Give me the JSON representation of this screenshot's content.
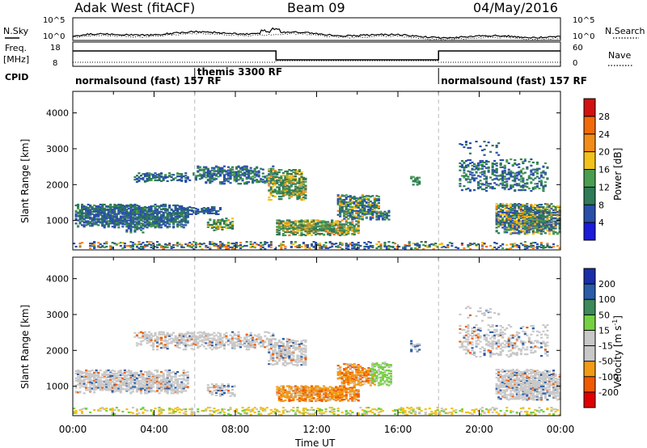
{
  "header": {
    "station": "Adak West (fitACF)",
    "beam": "Beam 09",
    "date": "04/May/2016"
  },
  "noise_panel": {
    "left_label": "N.Sky",
    "right_label": "N.Search",
    "left_ticks": [
      "10^5",
      "10^0"
    ],
    "right_ticks": [
      "10^5",
      "10^0"
    ]
  },
  "freq_panel": {
    "left_label_1": "Freq.",
    "left_label_2": "[MHz]",
    "right_label": "Nave",
    "left_ticks": [
      "18",
      "8"
    ],
    "right_ticks": [
      "60",
      "0"
    ]
  },
  "cpid_panel": {
    "label": "CPID",
    "segments": [
      {
        "start_h": 0,
        "end_h": 6,
        "text": "normalsound (fast) 157 RF"
      },
      {
        "start_h": 6,
        "end_h": 18,
        "text": "themis 3300 RF"
      },
      {
        "start_h": 18,
        "end_h": 24,
        "text": "normalsound (fast) 157 RF"
      }
    ]
  },
  "colors": {
    "power": [
      "#1c1cd9",
      "#2a4faa",
      "#2f7a58",
      "#4a9e50",
      "#f2c21a",
      "#f28c1a",
      "#f26a0a",
      "#d11111"
    ],
    "velocity": [
      "#e00000",
      "#f05a00",
      "#f29a14",
      "#c8c8c8",
      "#c8c8c8",
      "#76d042",
      "#3d8a5a",
      "#2a5ca8",
      "#1a2ea8"
    ]
  },
  "chart_data": [
    {
      "type": "heatmap",
      "name": "power",
      "ylabel": "Slant Range [km]",
      "ylim": [
        180,
        4600
      ],
      "yticks": [
        "1000",
        "2000",
        "3000",
        "4000"
      ],
      "xlim_hours": [
        0,
        24
      ],
      "colorbar_label": "Power [dB]",
      "colorbar_ticks": [
        "4",
        "8",
        "12",
        "16",
        "20",
        "24",
        "28"
      ],
      "colorbar_range": [
        0,
        30
      ],
      "features": [
        {
          "t0": 0.1,
          "t1": 5.6,
          "r0": 780,
          "r1": 1420,
          "v0": 6,
          "v1": 12,
          "density": 0.72
        },
        {
          "t0": 2.6,
          "t1": 3.5,
          "r0": 640,
          "r1": 900,
          "v0": 6,
          "v1": 12,
          "density": 0.5
        },
        {
          "t0": 5.0,
          "t1": 7.2,
          "r0": 1150,
          "r1": 1350,
          "v0": 6,
          "v1": 10,
          "density": 0.45
        },
        {
          "t0": 6.6,
          "t1": 7.8,
          "r0": 700,
          "r1": 1050,
          "v0": 8,
          "v1": 20,
          "density": 0.55
        },
        {
          "t0": 3.0,
          "t1": 6.0,
          "r0": 2050,
          "r1": 2300,
          "v0": 6,
          "v1": 12,
          "density": 0.35
        },
        {
          "t0": 6.0,
          "t1": 9.8,
          "r0": 2000,
          "r1": 2500,
          "v0": 6,
          "v1": 14,
          "density": 0.45
        },
        {
          "t0": 9.6,
          "t1": 11.4,
          "r0": 1550,
          "r1": 2400,
          "v0": 8,
          "v1": 22,
          "density": 0.6
        },
        {
          "t0": 10.0,
          "t1": 14.0,
          "r0": 560,
          "r1": 1000,
          "v0": 8,
          "v1": 24,
          "density": 0.7
        },
        {
          "t0": 13.0,
          "t1": 15.0,
          "r0": 1000,
          "r1": 1700,
          "v0": 6,
          "v1": 20,
          "density": 0.6
        },
        {
          "t0": 15.0,
          "t1": 15.5,
          "r0": 1000,
          "r1": 1300,
          "v0": 6,
          "v1": 12,
          "density": 0.4
        },
        {
          "t0": 16.6,
          "t1": 17.1,
          "r0": 1950,
          "r1": 2250,
          "v0": 8,
          "v1": 14,
          "density": 0.45
        },
        {
          "t0": 19.0,
          "t1": 23.4,
          "r0": 1800,
          "r1": 2700,
          "v0": 6,
          "v1": 14,
          "density": 0.3
        },
        {
          "t0": 20.8,
          "t1": 24.0,
          "r0": 600,
          "r1": 1450,
          "v0": 6,
          "v1": 22,
          "density": 0.75
        },
        {
          "t0": 19.0,
          "t1": 21.0,
          "r0": 2800,
          "r1": 3200,
          "v0": 6,
          "v1": 10,
          "density": 0.12
        },
        {
          "t0": 0.0,
          "t1": 24.0,
          "r0": 180,
          "r1": 380,
          "v0": 4,
          "v1": 26,
          "density": 0.3
        }
      ]
    },
    {
      "type": "heatmap",
      "name": "velocity",
      "ylabel": "Slant Range [km]",
      "ylim": [
        180,
        4600
      ],
      "yticks": [
        "1000",
        "2000",
        "3000",
        "4000"
      ],
      "xlabel": "Time UT",
      "xticks": [
        "00:00",
        "04:00",
        "08:00",
        "12:00",
        "16:00",
        "20:00",
        "00:00"
      ],
      "colorbar_label": "Velocity [m s^-1]",
      "colorbar_ticks": [
        "-200",
        "-100",
        "-50",
        "-15",
        "15",
        "50",
        "100",
        "200"
      ],
      "features": [
        {
          "t0": 0.1,
          "t1": 5.6,
          "r0": 780,
          "r1": 1420,
          "mode": "grey",
          "density": 0.6
        },
        {
          "t0": 3.0,
          "t1": 9.8,
          "r0": 2000,
          "r1": 2500,
          "mode": "grey",
          "density": 0.4
        },
        {
          "t0": 6.6,
          "t1": 8.0,
          "r0": 700,
          "r1": 1050,
          "mode": "grey",
          "density": 0.45
        },
        {
          "t0": 9.6,
          "t1": 11.4,
          "r0": 1550,
          "r1": 2300,
          "mode": "grey",
          "density": 0.5
        },
        {
          "t0": 10.0,
          "t1": 14.0,
          "r0": 560,
          "r1": 1000,
          "mode": "orange",
          "density": 0.7
        },
        {
          "t0": 13.0,
          "t1": 14.8,
          "r0": 1000,
          "r1": 1600,
          "mode": "orange",
          "density": 0.55
        },
        {
          "t0": 14.6,
          "t1": 15.6,
          "r0": 1000,
          "r1": 1650,
          "mode": "green",
          "density": 0.4
        },
        {
          "t0": 16.6,
          "t1": 17.1,
          "r0": 1950,
          "r1": 2250,
          "mode": "mixed",
          "density": 0.4
        },
        {
          "t0": 19.0,
          "t1": 23.4,
          "r0": 1800,
          "r1": 2700,
          "mode": "grey",
          "density": 0.25
        },
        {
          "t0": 20.8,
          "t1": 24.0,
          "r0": 600,
          "r1": 1450,
          "mode": "grey",
          "density": 0.7
        },
        {
          "t0": 19.0,
          "t1": 21.0,
          "r0": 2800,
          "r1": 3200,
          "mode": "grey",
          "density": 0.1
        },
        {
          "t0": 0.0,
          "t1": 24.0,
          "r0": 180,
          "r1": 380,
          "mode": "ground",
          "density": 0.25
        }
      ]
    }
  ]
}
